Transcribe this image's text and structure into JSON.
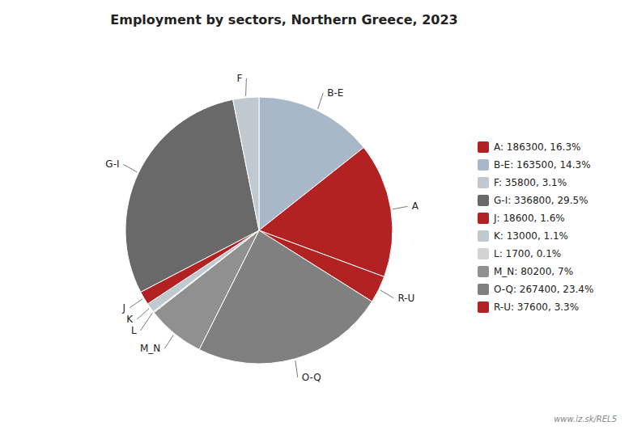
{
  "chart_data": {
    "type": "pie",
    "title": "Employment by sectors, Northern Greece, 2023",
    "categories": [
      "B-E",
      "A",
      "R-U",
      "O-Q",
      "M_N",
      "L",
      "K",
      "J",
      "G-I",
      "F"
    ],
    "values": [
      163500,
      186300,
      37600,
      267400,
      80200,
      1700,
      13000,
      18600,
      336800,
      35800
    ],
    "colors": [
      "#a8b8c8",
      "#b22222",
      "#b22222",
      "#808080",
      "#909090",
      "#d3d3d3",
      "#c0c8d0",
      "#b22222",
      "#696969",
      "#c0c8d0"
    ],
    "legend": "right",
    "legend_labels": [
      "A: 186300, 16.3%",
      "B-E: 163500, 14.3%",
      "F: 35800, 3.1%",
      "G-I: 336800, 29.5%",
      "J: 18600, 1.6%",
      "K: 13000, 1.1%",
      "L: 1700, 0.1%",
      "M_N: 80200, 7%",
      "O-Q: 267400, 23.4%",
      "R-U: 37600, 3.3%"
    ],
    "legend_colors": [
      "#b22222",
      "#a8b8c8",
      "#c0c8d0",
      "#696969",
      "#b22222",
      "#c0c8d0",
      "#d3d3d3",
      "#909090",
      "#808080",
      "#b22222"
    ],
    "annotations": [
      "www.iz.sk/REL5"
    ]
  }
}
